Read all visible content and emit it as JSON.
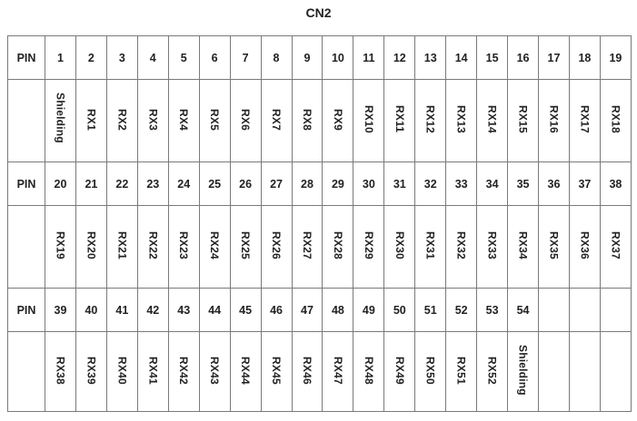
{
  "title": "CN2",
  "pin_label": "PIN",
  "blocks": [
    {
      "pins": [
        "1",
        "2",
        "3",
        "4",
        "5",
        "6",
        "7",
        "8",
        "9",
        "10",
        "11",
        "12",
        "13",
        "14",
        "15",
        "16",
        "17",
        "18",
        "19"
      ],
      "signals": [
        "Shielding",
        "RX1",
        "RX2",
        "RX3",
        "RX4",
        "RX5",
        "RX6",
        "RX7",
        "RX8",
        "RX9",
        "RX10",
        "RX11",
        "RX12",
        "RX13",
        "RX14",
        "RX15",
        "RX16",
        "RX17",
        "RX18"
      ]
    },
    {
      "pins": [
        "20",
        "21",
        "22",
        "23",
        "24",
        "25",
        "26",
        "27",
        "28",
        "29",
        "30",
        "31",
        "32",
        "33",
        "34",
        "35",
        "36",
        "37",
        "38"
      ],
      "signals": [
        "RX19",
        "RX20",
        "RX21",
        "RX22",
        "RX23",
        "RX24",
        "RX25",
        "RX26",
        "RX27",
        "RX28",
        "RX29",
        "RX30",
        "RX31",
        "RX32",
        "RX33",
        "RX34",
        "RX35",
        "RX36",
        "RX37"
      ]
    },
    {
      "pins": [
        "39",
        "40",
        "41",
        "42",
        "43",
        "44",
        "45",
        "46",
        "47",
        "48",
        "49",
        "50",
        "51",
        "52",
        "53",
        "54",
        "",
        "",
        ""
      ],
      "signals": [
        "RX38",
        "RX39",
        "RX40",
        "RX41",
        "RX42",
        "RX43",
        "RX44",
        "RX45",
        "RX46",
        "RX47",
        "RX48",
        "RX49",
        "RX50",
        "RX51",
        "RX52",
        "Shielding",
        "",
        "",
        ""
      ]
    }
  ]
}
